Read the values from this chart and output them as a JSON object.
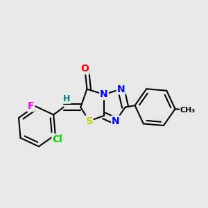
{
  "background_color": "#e8e8e8",
  "bond_color": "#000000",
  "bond_width": 1.5,
  "atom_colors": {
    "O": "#ff0000",
    "N": "#0000ff",
    "S": "#cccc00",
    "F": "#ff00ff",
    "Cl": "#00cc00",
    "H": "#008080",
    "C": "#000000"
  },
  "font_size": 10,
  "fig_width": 3.0,
  "fig_height": 3.0
}
